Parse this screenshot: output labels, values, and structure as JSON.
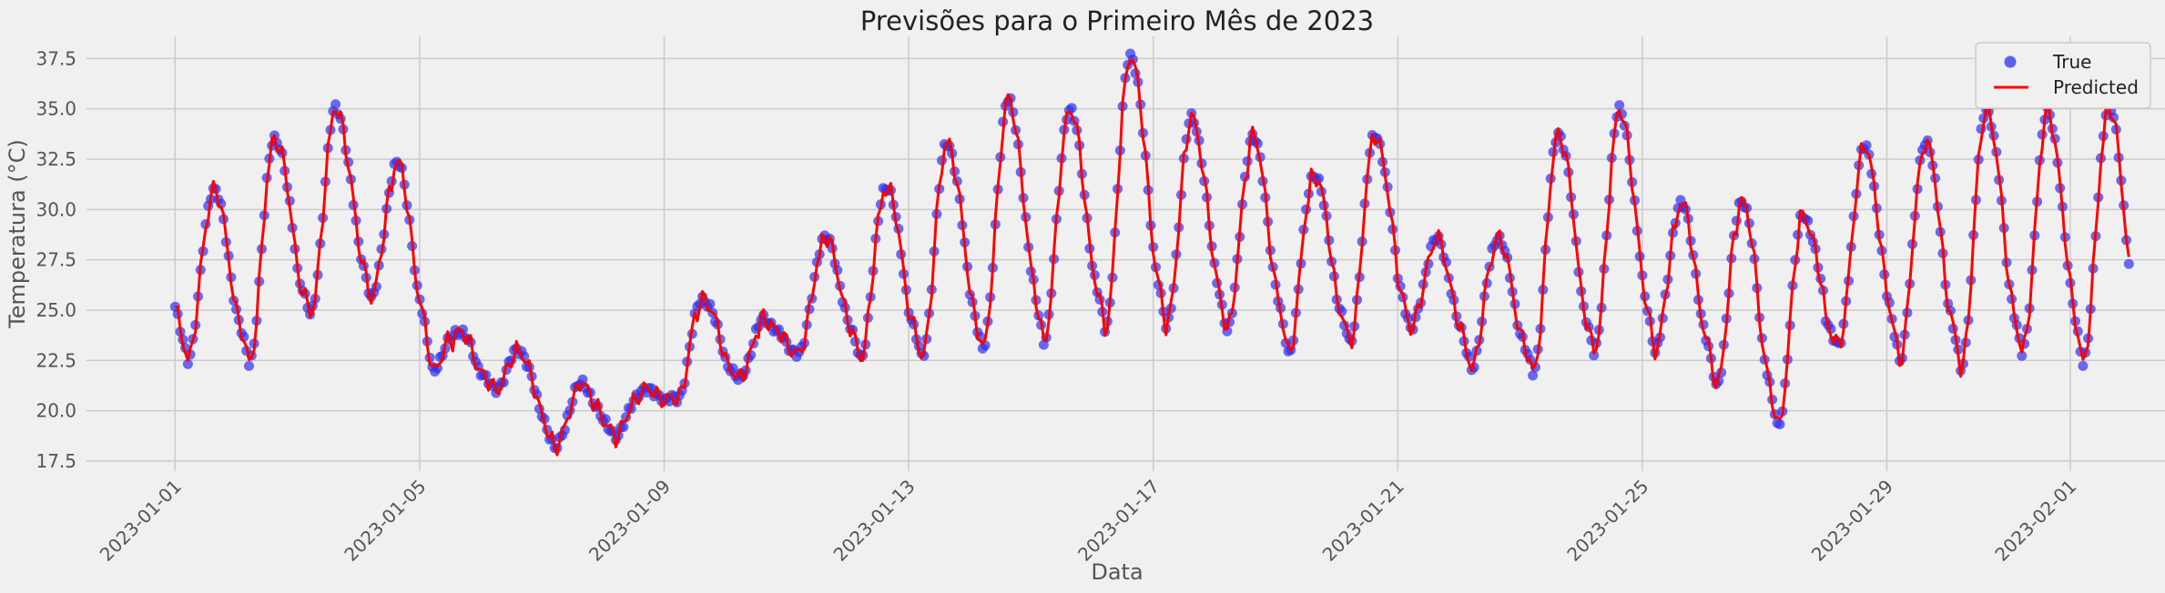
{
  "chart_data": {
    "type": "line",
    "title": "Previsões para o Primeiro Mês de 2023",
    "xlabel": "Data",
    "ylabel": "Temperatura (°C)",
    "x_ticks": [
      "2023-01-01",
      "2023-01-05",
      "2023-01-09",
      "2023-01-13",
      "2023-01-17",
      "2023-01-21",
      "2023-01-25",
      "2023-01-29",
      "2023-02-01"
    ],
    "x_tick_days": [
      0,
      4,
      8,
      12,
      16,
      20,
      24,
      28,
      31
    ],
    "xlim_days": [
      -1.45,
      32.55
    ],
    "y_ticks": [
      17.5,
      20.0,
      22.5,
      25.0,
      27.5,
      30.0,
      32.5,
      35.0,
      37.5
    ],
    "ylim": [
      17.0,
      38.6
    ],
    "grid": true,
    "legend_position": "top-right",
    "series": [
      {
        "name": "True",
        "kind": "scatter",
        "color": "#2f2ff0"
      },
      {
        "name": "Predicted",
        "kind": "line",
        "color": "#ff0000"
      }
    ],
    "daily_profile": [
      {
        "min": 22.6,
        "max": 31.0
      },
      {
        "min": 22.4,
        "max": 33.6
      },
      {
        "min": 24.7,
        "max": 35.0
      },
      {
        "min": 25.6,
        "max": 32.3
      },
      {
        "min": 22.1,
        "max": 24.0
      },
      {
        "min": 21.0,
        "max": 23.0
      },
      {
        "min": 18.1,
        "max": 21.3
      },
      {
        "min": 18.8,
        "max": 21.0
      },
      {
        "min": 20.6,
        "max": 25.6
      },
      {
        "min": 21.5,
        "max": 24.5
      },
      {
        "min": 22.9,
        "max": 28.6
      },
      {
        "min": 22.7,
        "max": 31.2
      },
      {
        "min": 22.6,
        "max": 33.3
      },
      {
        "min": 23.0,
        "max": 35.4
      },
      {
        "min": 23.5,
        "max": 35.0
      },
      {
        "min": 24.1,
        "max": 37.7
      },
      {
        "min": 24.1,
        "max": 34.5
      },
      {
        "min": 24.0,
        "max": 33.6
      },
      {
        "min": 22.9,
        "max": 31.8
      },
      {
        "min": 23.3,
        "max": 33.7
      },
      {
        "min": 24.0,
        "max": 28.5
      },
      {
        "min": 22.2,
        "max": 28.6
      },
      {
        "min": 21.9,
        "max": 33.8
      },
      {
        "min": 22.8,
        "max": 34.9
      },
      {
        "min": 23.0,
        "max": 30.3
      },
      {
        "min": 21.3,
        "max": 30.5
      },
      {
        "min": 19.1,
        "max": 29.7
      },
      {
        "min": 23.2,
        "max": 33.1
      },
      {
        "min": 22.6,
        "max": 33.4
      },
      {
        "min": 22.1,
        "max": 35.0
      },
      {
        "min": 22.8,
        "max": 34.8
      },
      {
        "min": 22.4,
        "max": 35.1
      }
    ]
  }
}
